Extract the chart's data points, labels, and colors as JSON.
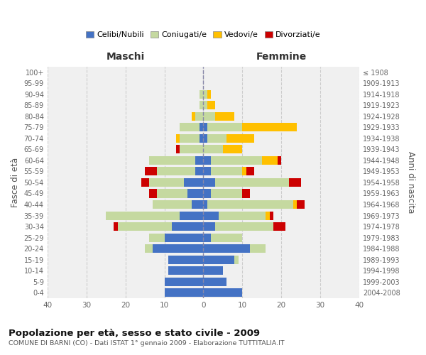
{
  "age_groups": [
    "0-4",
    "5-9",
    "10-14",
    "15-19",
    "20-24",
    "25-29",
    "30-34",
    "35-39",
    "40-44",
    "45-49",
    "50-54",
    "55-59",
    "60-64",
    "65-69",
    "70-74",
    "75-79",
    "80-84",
    "85-89",
    "90-94",
    "95-99",
    "100+"
  ],
  "birth_years": [
    "2004-2008",
    "1999-2003",
    "1994-1998",
    "1989-1993",
    "1984-1988",
    "1979-1983",
    "1974-1978",
    "1969-1973",
    "1964-1968",
    "1959-1963",
    "1954-1958",
    "1949-1953",
    "1944-1948",
    "1939-1943",
    "1934-1938",
    "1929-1933",
    "1924-1928",
    "1919-1923",
    "1914-1918",
    "1909-1913",
    "≤ 1908"
  ],
  "male": {
    "celibi": [
      10,
      10,
      9,
      9,
      13,
      10,
      8,
      6,
      3,
      4,
      5,
      2,
      2,
      0,
      1,
      1,
      0,
      0,
      0,
      0,
      0
    ],
    "coniugati": [
      0,
      0,
      0,
      0,
      2,
      4,
      14,
      19,
      10,
      8,
      9,
      10,
      12,
      6,
      5,
      5,
      2,
      1,
      1,
      0,
      0
    ],
    "vedovi": [
      0,
      0,
      0,
      0,
      0,
      0,
      0,
      0,
      0,
      0,
      0,
      0,
      0,
      0,
      1,
      0,
      1,
      0,
      0,
      0,
      0
    ],
    "divorziati": [
      0,
      0,
      0,
      0,
      0,
      0,
      1,
      0,
      0,
      2,
      2,
      3,
      0,
      1,
      0,
      0,
      0,
      0,
      0,
      0,
      0
    ]
  },
  "female": {
    "nubili": [
      10,
      6,
      5,
      8,
      12,
      2,
      3,
      4,
      1,
      2,
      3,
      2,
      2,
      0,
      1,
      1,
      0,
      0,
      0,
      0,
      0
    ],
    "coniugate": [
      0,
      0,
      0,
      1,
      4,
      8,
      15,
      12,
      22,
      8,
      19,
      8,
      13,
      5,
      5,
      9,
      3,
      1,
      1,
      0,
      0
    ],
    "vedove": [
      0,
      0,
      0,
      0,
      0,
      0,
      0,
      1,
      1,
      0,
      0,
      1,
      4,
      5,
      7,
      14,
      5,
      2,
      1,
      0,
      0
    ],
    "divorziate": [
      0,
      0,
      0,
      0,
      0,
      0,
      3,
      1,
      2,
      2,
      3,
      2,
      1,
      0,
      0,
      0,
      0,
      0,
      0,
      0,
      0
    ]
  },
  "colors": {
    "celibi": "#4472c4",
    "coniugati": "#c5d9a0",
    "vedovi": "#ffc000",
    "divorziati": "#cc0000"
  },
  "title": "Popolazione per età, sesso e stato civile - 2009",
  "subtitle": "COMUNE DI BARNI (CO) - Dati ISTAT 1° gennaio 2009 - Elaborazione TUTTITALIA.IT",
  "xlabel_left": "Maschi",
  "xlabel_right": "Femmine",
  "ylabel_left": "Fasce di età",
  "ylabel_right": "Anni di nascita",
  "xlim": 40,
  "legend_labels": [
    "Celibi/Nubili",
    "Coniugati/e",
    "Vedovi/e",
    "Divorziati/e"
  ],
  "bg_color": "#ffffff",
  "grid_color": "#cccccc",
  "femmine_color": "#333333",
  "maschi_color": "#333333"
}
